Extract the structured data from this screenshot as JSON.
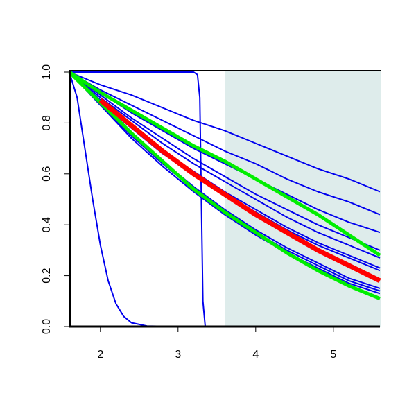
{
  "chart_data": {
    "type": "line",
    "x": [
      1.6,
      2.0,
      2.4,
      2.8,
      3.2,
      3.6,
      4.0,
      4.4,
      4.8,
      5.2,
      5.6
    ],
    "series": [
      {
        "color": "#0000ee",
        "values": [
          1,
          0.95,
          0.91,
          0.86,
          0.81,
          0.77,
          0.72,
          0.67,
          0.62,
          0.58,
          0.53
        ]
      },
      {
        "color": "#0000ee",
        "values": [
          1,
          0.93,
          0.87,
          0.81,
          0.75,
          0.69,
          0.64,
          0.58,
          0.53,
          0.49,
          0.44
        ]
      },
      {
        "color": "#0000ee",
        "values": [
          1,
          0.92,
          0.84,
          0.77,
          0.7,
          0.64,
          0.58,
          0.52,
          0.46,
          0.41,
          0.37
        ]
      },
      {
        "color": "#0000ee",
        "values": [
          1,
          0.91,
          0.82,
          0.74,
          0.66,
          0.59,
          0.52,
          0.46,
          0.4,
          0.35,
          0.3
        ]
      },
      {
        "color": "#0000ee",
        "values": [
          1,
          0.9,
          0.81,
          0.72,
          0.64,
          0.57,
          0.5,
          0.43,
          0.37,
          0.32,
          0.27
        ]
      },
      {
        "color": "#0000ee",
        "values": [
          1,
          0.89,
          0.79,
          0.69,
          0.61,
          0.53,
          0.46,
          0.39,
          0.33,
          0.28,
          0.23
        ]
      },
      {
        "color": "#0000ee",
        "values": [
          1,
          0.88,
          0.78,
          0.68,
          0.6,
          0.52,
          0.45,
          0.38,
          0.32,
          0.27,
          0.22
        ]
      },
      {
        "color": "#0000ee",
        "values": [
          1,
          0.88,
          0.76,
          0.65,
          0.55,
          0.46,
          0.38,
          0.31,
          0.25,
          0.19,
          0.15
        ]
      },
      {
        "color": "#0000ee",
        "values": [
          1,
          0.87,
          0.75,
          0.64,
          0.54,
          0.45,
          0.37,
          0.3,
          0.24,
          0.18,
          0.14
        ]
      },
      {
        "color": "#0000ee",
        "values": [
          1,
          0.87,
          0.74,
          0.63,
          0.53,
          0.44,
          0.36,
          0.29,
          0.23,
          0.17,
          0.13
        ]
      },
      {
        "color": "#0000ee",
        "x": [
          1.6,
          1.7,
          1.8,
          1.9,
          2.0,
          2.1,
          2.2,
          2.3,
          2.4,
          2.6,
          3.0,
          4.0,
          5.6
        ],
        "values": [
          1,
          0.9,
          0.7,
          0.5,
          0.32,
          0.18,
          0.09,
          0.04,
          0.015,
          0.002,
          0,
          0,
          0
        ]
      },
      {
        "color": "#0000ee",
        "x": [
          1.6,
          3.0,
          3.2,
          3.25,
          3.28,
          3.3,
          3.32,
          3.35,
          3.4,
          5.6
        ],
        "values": [
          1,
          1,
          1,
          0.99,
          0.9,
          0.5,
          0.1,
          0,
          0,
          0
        ]
      },
      {
        "color": "#00ee00",
        "width": 5,
        "values": [
          1,
          0.92,
          0.85,
          0.78,
          0.71,
          0.65,
          0.58,
          0.51,
          0.44,
          0.36,
          0.28
        ]
      },
      {
        "color": "#00ee00",
        "width": 5,
        "values": [
          1,
          0.88,
          0.76,
          0.65,
          0.54,
          0.45,
          0.37,
          0.29,
          0.22,
          0.16,
          0.11
        ]
      },
      {
        "color": "#ff0000",
        "width": 7,
        "values": [
          null,
          0.89,
          0.79,
          0.69,
          0.6,
          0.52,
          0.44,
          0.37,
          0.3,
          0.24,
          0.18
        ]
      }
    ],
    "shade_xlim": [
      3.6,
      5.6
    ],
    "shade_color": "#deeceb",
    "xlim": [
      1.6,
      5.6
    ],
    "ylim": [
      0,
      1
    ],
    "xticks": [
      2,
      3,
      4,
      5
    ],
    "yticks": [
      {
        "value": 0,
        "label": "0.0"
      },
      0.2,
      0.4,
      0.6,
      0.8,
      {
        "value": 1,
        "label": "1.0"
      }
    ]
  }
}
